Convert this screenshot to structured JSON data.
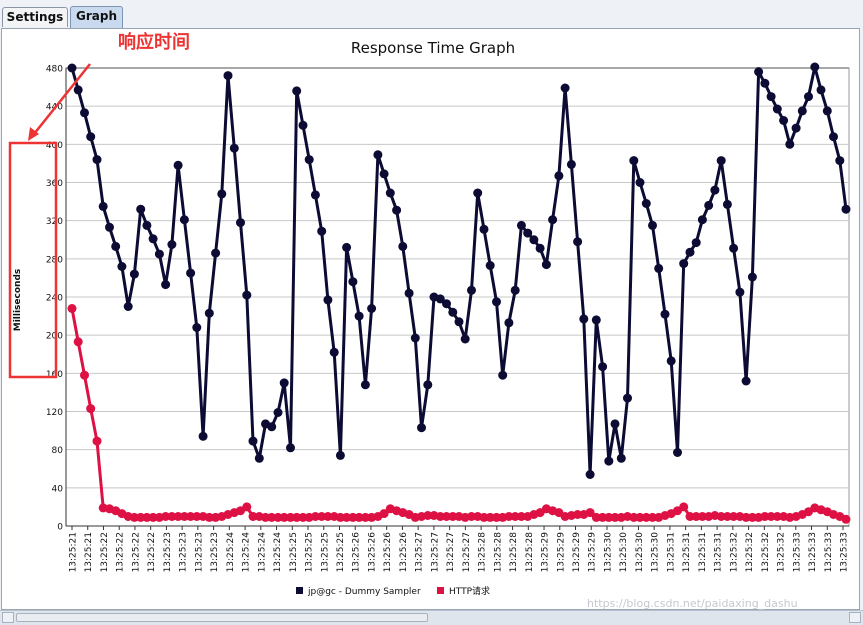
{
  "tabs": [
    {
      "label": "Settings",
      "active": false
    },
    {
      "label": "Graph",
      "active": true
    }
  ],
  "annotation": {
    "text": "响应时间",
    "color": "#ee3333"
  },
  "watermark": "https://blog.csdn.net/paidaxing_dashu",
  "colors": {
    "series1": "#0b0b33",
    "series2": "#dd1144",
    "grid": "#c8c8c8"
  },
  "chart_data": {
    "type": "line",
    "title": "Response Time Graph",
    "ylabel": "Milliseconds",
    "xlabel": "",
    "ylim": [
      0,
      480
    ],
    "yticks": [
      0,
      40,
      80,
      120,
      160,
      200,
      240,
      280,
      320,
      360,
      400,
      440,
      480
    ],
    "grid": true,
    "legend_position": "bottom",
    "x_tick_labels": [
      "13:25:21",
      "13:25:21",
      "13:25:22",
      "13:25:22",
      "13:25:22",
      "13:25:22",
      "13:25:23",
      "13:25:23",
      "13:25:23",
      "13:25:23",
      "13:25:24",
      "13:25:24",
      "13:25:24",
      "13:25:24",
      "13:25:25",
      "13:25:25",
      "13:25:25",
      "13:25:25",
      "13:25:26",
      "13:25:26",
      "13:25:26",
      "13:25:26",
      "13:25:27",
      "13:25:27",
      "13:25:27",
      "13:25:27",
      "13:25:28",
      "13:25:28",
      "13:25:28",
      "13:25:28",
      "13:25:29",
      "13:25:29",
      "13:25:29",
      "13:25:29",
      "13:25:30",
      "13:25:30",
      "13:25:30",
      "13:25:30",
      "13:25:31",
      "13:25:31",
      "13:25:31",
      "13:25:31",
      "13:25:32",
      "13:25:32",
      "13:25:32",
      "13:25:32",
      "13:25:33",
      "13:25:33",
      "13:25:33",
      "13:25:33"
    ],
    "series": [
      {
        "name": "jp@gc - Dummy Sampler",
        "color": "#0b0b33",
        "values": [
          480,
          457,
          433,
          408,
          384,
          335,
          313,
          293,
          272,
          230,
          264,
          332,
          315,
          301,
          285,
          253,
          295,
          378,
          321,
          265,
          208,
          94,
          223,
          286,
          348,
          472,
          396,
          318,
          242,
          89,
          71,
          107,
          104,
          119,
          150,
          82,
          456,
          420,
          384,
          347,
          309,
          237,
          182,
          74,
          292,
          256,
          220,
          148,
          228,
          389,
          369,
          349,
          331,
          293,
          244,
          197,
          103,
          148,
          240,
          238,
          233,
          224,
          214,
          196,
          247,
          349,
          311,
          273,
          235,
          158,
          213,
          247,
          315,
          307,
          300,
          291,
          274,
          321,
          367,
          459,
          379,
          298,
          217,
          54,
          216,
          167,
          68,
          107,
          71,
          134,
          383,
          360,
          338,
          315,
          270,
          222,
          173,
          77,
          275,
          287,
          297,
          321,
          336,
          352,
          383,
          337,
          291,
          245,
          152,
          261,
          476,
          464,
          450,
          437,
          425,
          400,
          417,
          435,
          450,
          481,
          457,
          435,
          408,
          383,
          332
        ]
      },
      {
        "name": "HTTP请求",
        "color": "#dd1144",
        "values": [
          228,
          193,
          158,
          123,
          89,
          19,
          18,
          16,
          13,
          10,
          9,
          9,
          9,
          9,
          9,
          10,
          10,
          10,
          10,
          10,
          10,
          10,
          9,
          9,
          10,
          12,
          14,
          16,
          20,
          10,
          10,
          9,
          9,
          9,
          9,
          9,
          9,
          9,
          9,
          10,
          10,
          10,
          10,
          9,
          9,
          9,
          9,
          9,
          9,
          10,
          13,
          18,
          16,
          14,
          12,
          9,
          10,
          11,
          11,
          10,
          10,
          10,
          10,
          9,
          10,
          10,
          9,
          9,
          9,
          9,
          10,
          10,
          10,
          10,
          12,
          14,
          18,
          16,
          14,
          10,
          11,
          12,
          12,
          14,
          9,
          9,
          9,
          9,
          9,
          10,
          9,
          9,
          9,
          9,
          9,
          11,
          13,
          16,
          20,
          10,
          10,
          10,
          10,
          11,
          10,
          10,
          10,
          10,
          9,
          9,
          9,
          10,
          10,
          10,
          10,
          9,
          10,
          12,
          15,
          19,
          17,
          15,
          12,
          10,
          7
        ]
      }
    ]
  }
}
